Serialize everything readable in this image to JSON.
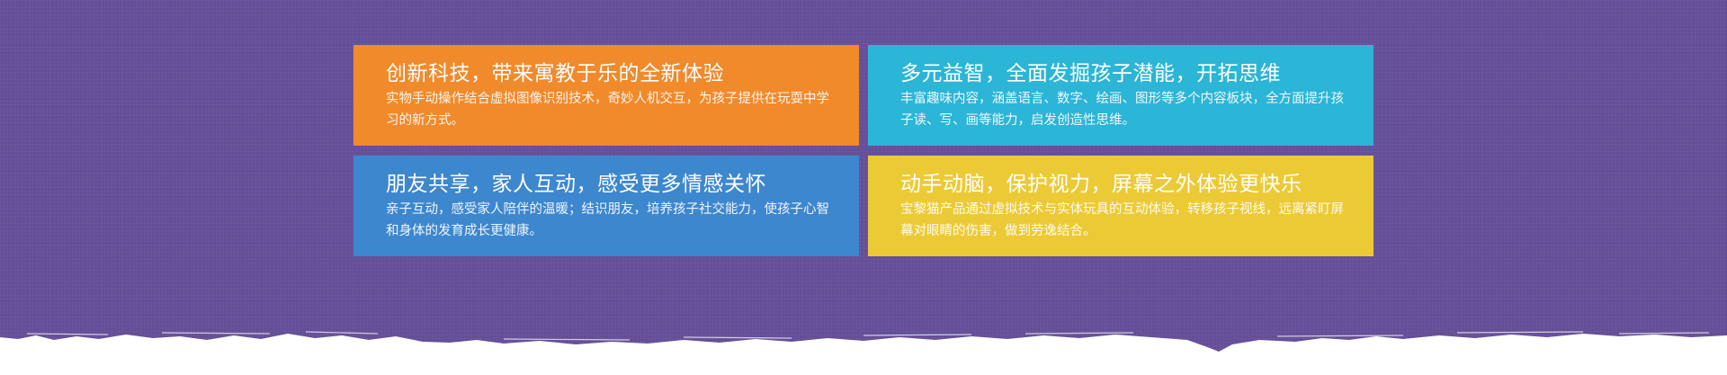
{
  "colors": {
    "background": "#644e97",
    "orange": "#f18a2b",
    "cyan": "#2bb5d6",
    "blue": "#3d87ce",
    "yellow": "#ecca36",
    "torn_edge": "#ffffff"
  },
  "cards": [
    {
      "title": "创新科技，带来寓教于乐的全新体验",
      "description": "实物手动操作结合虚拟图像识别技术，奇妙人机交互，为孩子提供在玩耍中学习的新方式。"
    },
    {
      "title": "多元益智，全面发掘孩子潜能，开拓思维",
      "description": "丰富趣味内容，涵盖语言、数字、绘画、图形等多个内容板块，全方面提升孩子读、写、画等能力，启发创造性思维。"
    },
    {
      "title": "朋友共享，家人互动，感受更多情感关怀",
      "description": "亲子互动，感受家人陪伴的温暖；结识朋友，培养孩子社交能力，使孩子心智和身体的发育成长更健康。"
    },
    {
      "title": "动手动脑，保护视力，屏幕之外体验更快乐",
      "description": "宝黎猫产品通过虚拟技术与实体玩具的互动体验，转移孩子视线，远离紧盯屏幕对眼睛的伤害，做到劳逸结合。"
    }
  ]
}
